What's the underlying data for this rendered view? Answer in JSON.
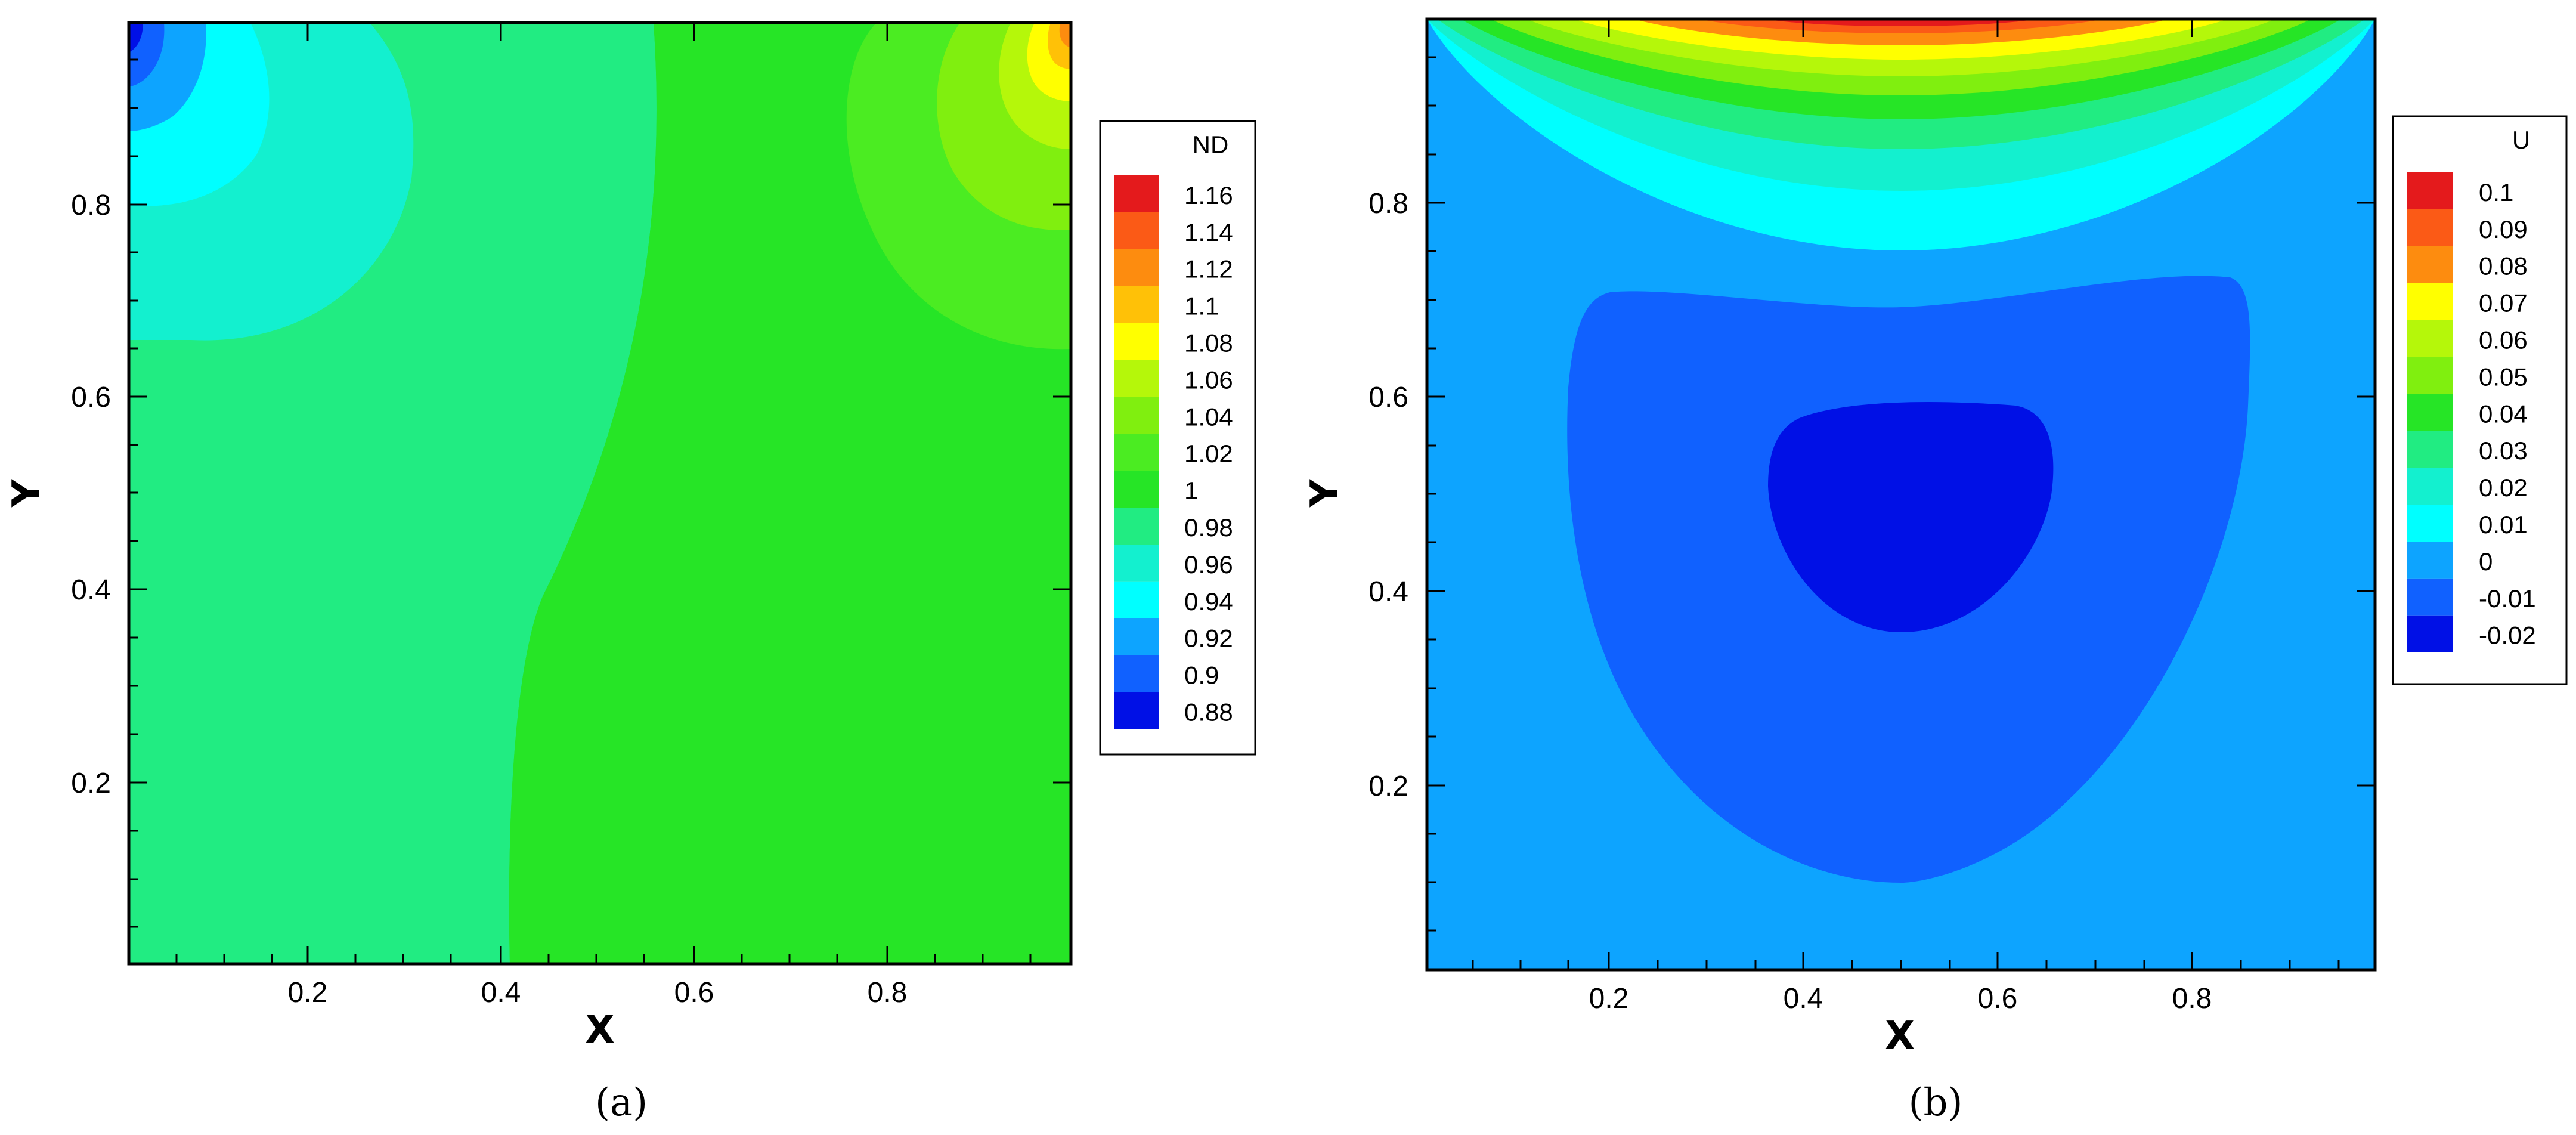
{
  "chart_data": [
    {
      "type": "heatmap",
      "panel_label": "(a)",
      "xlabel": "X",
      "ylabel": "Y",
      "xlim": [
        0.0,
        1.0
      ],
      "ylim": [
        0.0,
        1.0
      ],
      "xticks": [
        "0.2",
        "0.4",
        "0.6",
        "0.8"
      ],
      "yticks": [
        "0.2",
        "0.4",
        "0.6",
        "0.8"
      ],
      "legend": {
        "title": "ND",
        "levels": [
          "1.16",
          "1.14",
          "1.12",
          "1.1",
          "1.08",
          "1.06",
          "1.04",
          "1.02",
          "1",
          "0.98",
          "0.96",
          "0.94",
          "0.92",
          "0.9",
          "0.88"
        ],
        "colors": [
          "#e41a1c",
          "#fb5a16",
          "#fd8c0f",
          "#ffc107",
          "#ffff00",
          "#b5f70a",
          "#80ef0f",
          "#4bec22",
          "#26e526",
          "#21ec82",
          "#13f0cf",
          "#00ffff",
          "#0da4ff",
          "#1061ff",
          "#0010e6"
        ]
      },
      "regions": [
        {
          "value": 1.0,
          "description": "left"
        },
        {
          "value": 1.02,
          "description": "right"
        },
        {
          "value": 0.98,
          "description": "top-left"
        },
        {
          "value": 0.96,
          "description": "top-left"
        },
        {
          "value": 0.94,
          "description": "top-left"
        },
        {
          "value": 0.92,
          "description": "top-left"
        },
        {
          "value": 0.9,
          "description": "top-left corner"
        },
        {
          "value": 1.04,
          "description": "top-right"
        },
        {
          "value": 1.06,
          "description": "top-right"
        },
        {
          "value": 1.08,
          "description": "top-right"
        },
        {
          "value": 1.1,
          "description": "top-right"
        },
        {
          "value": 1.12,
          "description": "top-right corner"
        },
        {
          "value": 1.14,
          "description": "top-right corner"
        }
      ]
    },
    {
      "type": "heatmap",
      "panel_label": "(b)",
      "xlabel": "X",
      "ylabel": "Y",
      "xlim": [
        0.0,
        1.0
      ],
      "ylim": [
        0.0,
        1.0
      ],
      "xticks": [
        "0.2",
        "0.4",
        "0.6",
        "0.8"
      ],
      "yticks": [
        "0.2",
        "0.4",
        "0.6",
        "0.8"
      ],
      "legend": {
        "title": "U",
        "levels": [
          "0.1",
          "0.09",
          "0.08",
          "0.07",
          "0.06",
          "0.05",
          "0.04",
          "0.03",
          "0.02",
          "0.01",
          "0",
          "-0.01",
          "-0.02"
        ],
        "colors": [
          "#e41a1c",
          "#fb5a16",
          "#fd8c0f",
          "#ffff00",
          "#b5f70a",
          "#80ef0f",
          "#26e526",
          "#21ec82",
          "#13f0cf",
          "#00ffff",
          "#0da4ff",
          "#1061ff",
          "#0010e6"
        ]
      },
      "regions": [
        {
          "value": 0.0,
          "description": "background"
        },
        {
          "value": -0.01,
          "description": "center"
        },
        {
          "value": -0.02,
          "description": "center core"
        },
        {
          "value": 0.01,
          "description": "top band"
        },
        {
          "value": 0.02,
          "description": "top band"
        },
        {
          "value": 0.03,
          "description": "top band"
        },
        {
          "value": 0.04,
          "description": "top band"
        },
        {
          "value": 0.05,
          "description": "top band"
        },
        {
          "value": 0.06,
          "description": "top band"
        },
        {
          "value": 0.07,
          "description": "top band"
        },
        {
          "value": 0.08,
          "description": "top band"
        },
        {
          "value": 0.09,
          "description": "top band"
        },
        {
          "value": 0.1,
          "description": "top lid"
        }
      ]
    }
  ]
}
